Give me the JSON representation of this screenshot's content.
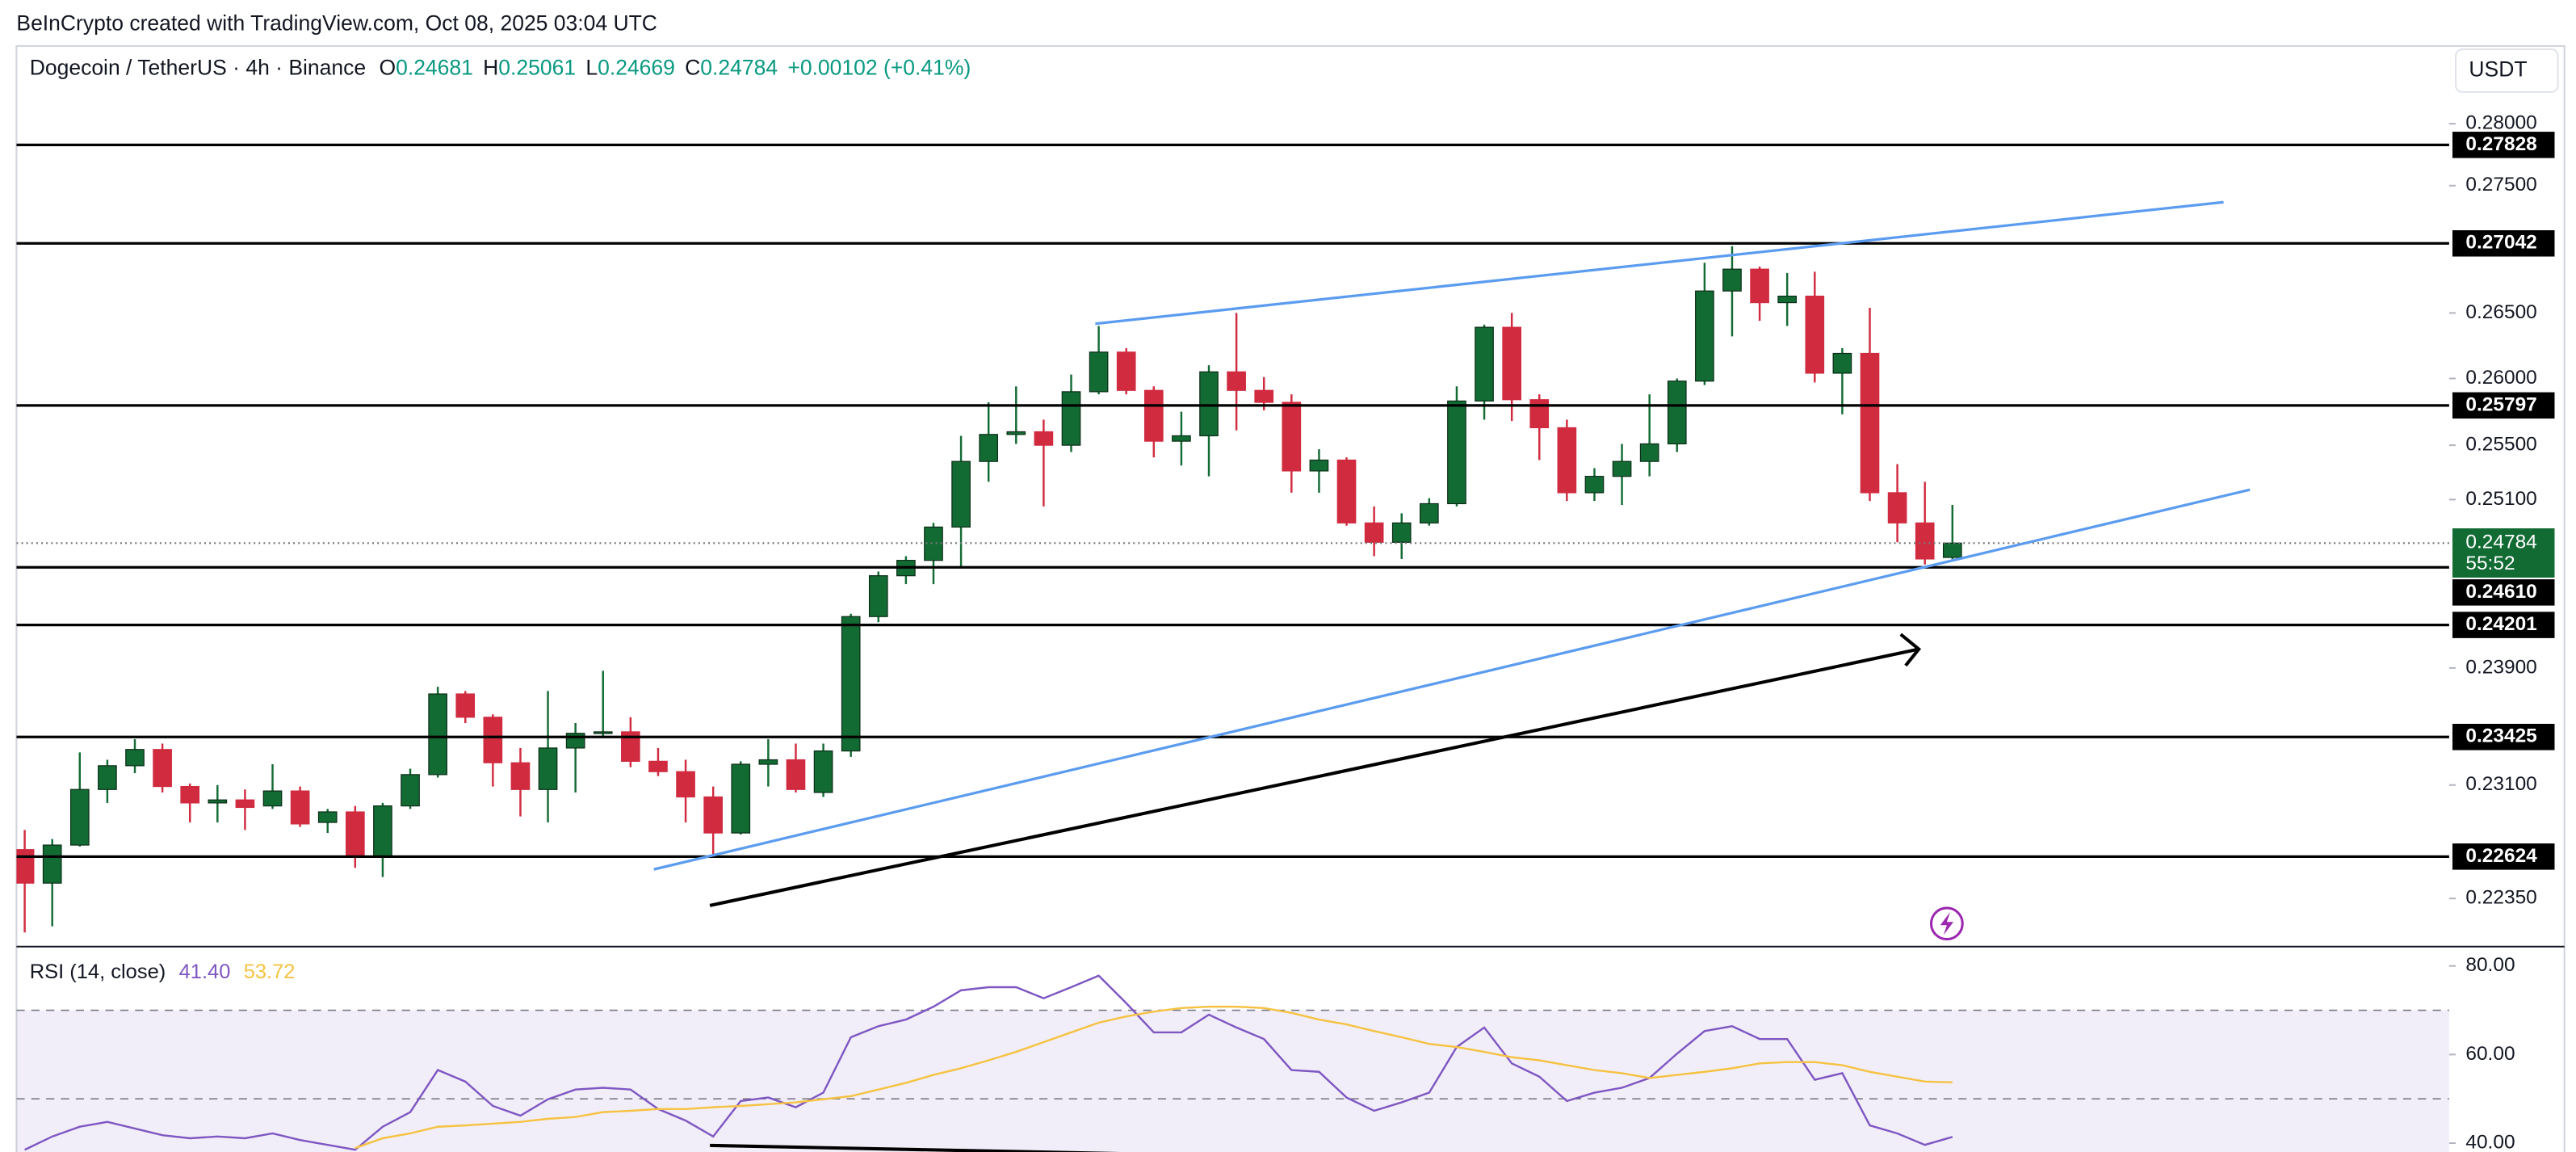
{
  "chart_data": [
    {
      "type": "candlestick",
      "header": "BeInCrypto created with TradingView.com, Oct 08, 2025 03:04 UTC",
      "title": "Dogecoin / TetherUS · 4h · Binance",
      "ohlc_keys": [
        "O",
        "H",
        "L",
        "C"
      ],
      "change": "+0.00102 (+0.41%)",
      "currency": "USDT",
      "countdown": "55:52",
      "up_color": "#136b34",
      "down_color": "#d12b40",
      "log_scale": true,
      "ylim": [
        0.2205,
        0.2864
      ],
      "yticks": [
        {
          "value": 0.28,
          "label": "0.28000"
        },
        {
          "value": 0.275,
          "label": "0.27500"
        },
        {
          "value": 0.265,
          "label": "0.26500"
        },
        {
          "value": 0.26,
          "label": "0.26000"
        },
        {
          "value": 0.255,
          "label": "0.25500"
        },
        {
          "value": 0.251,
          "label": "0.25100"
        },
        {
          "value": 0.239,
          "label": "0.23900"
        },
        {
          "value": 0.231,
          "label": "0.23100"
        },
        {
          "value": 0.2235,
          "label": "0.22350"
        }
      ],
      "levels": [
        0.27828,
        0.27042,
        0.25797,
        {
          "value": 0.2461,
          "label": "0.24610"
        },
        0.24201,
        0.23425,
        0.22624
      ],
      "ohlc": [
        [
          0.2267,
          0.228,
          0.2213,
          0.2245
        ],
        [
          0.2245,
          0.2274,
          0.2217,
          0.227
        ],
        [
          0.227,
          0.2332,
          0.2269,
          0.2307
        ],
        [
          0.2307,
          0.2327,
          0.2298,
          0.2323
        ],
        [
          0.2323,
          0.2341,
          0.2318,
          0.2334
        ],
        [
          0.2334,
          0.2338,
          0.2305,
          0.2309
        ],
        [
          0.2309,
          0.2311,
          0.2285,
          0.2298
        ],
        [
          0.2298,
          0.231,
          0.2285,
          0.23
        ],
        [
          0.23,
          0.2307,
          0.228,
          0.2295
        ],
        [
          0.2296,
          0.2324,
          0.2294,
          0.2306
        ],
        [
          0.2306,
          0.2309,
          0.2282,
          0.2284
        ],
        [
          0.2285,
          0.2294,
          0.2278,
          0.2292
        ],
        [
          0.2292,
          0.2296,
          0.2255,
          0.2262
        ],
        [
          0.2262,
          0.2298,
          0.2249,
          0.2296
        ],
        [
          0.2296,
          0.2321,
          0.2294,
          0.2317
        ],
        [
          0.2317,
          0.2377,
          0.2315,
          0.2372
        ],
        [
          0.2372,
          0.2374,
          0.2352,
          0.2356
        ],
        [
          0.2356,
          0.2358,
          0.2309,
          0.2325
        ],
        [
          0.2325,
          0.2335,
          0.2289,
          0.2307
        ],
        [
          0.2307,
          0.2374,
          0.2285,
          0.2335
        ],
        [
          0.2335,
          0.2352,
          0.2305,
          0.2345
        ],
        [
          0.2345,
          0.2388,
          0.2343,
          0.2346
        ],
        [
          0.2346,
          0.2356,
          0.2322,
          0.2326
        ],
        [
          0.2326,
          0.2335,
          0.2316,
          0.2319
        ],
        [
          0.2319,
          0.2327,
          0.2285,
          0.2302
        ],
        [
          0.2302,
          0.2309,
          0.2264,
          0.2278
        ],
        [
          0.2278,
          0.2326,
          0.2277,
          0.2324
        ],
        [
          0.2324,
          0.2341,
          0.2309,
          0.2327
        ],
        [
          0.2327,
          0.2338,
          0.2305,
          0.2307
        ],
        [
          0.2305,
          0.2338,
          0.2302,
          0.2333
        ],
        [
          0.2333,
          0.2428,
          0.2329,
          0.2426
        ],
        [
          0.2426,
          0.2458,
          0.2422,
          0.2455
        ],
        [
          0.2455,
          0.2469,
          0.2449,
          0.2466
        ],
        [
          0.2466,
          0.2493,
          0.2449,
          0.249
        ],
        [
          0.249,
          0.2557,
          0.2461,
          0.2538
        ],
        [
          0.2538,
          0.2582,
          0.2523,
          0.2558
        ],
        [
          0.2558,
          0.2594,
          0.2551,
          0.256
        ],
        [
          0.256,
          0.2569,
          0.2505,
          0.255
        ],
        [
          0.255,
          0.2603,
          0.2545,
          0.259
        ],
        [
          0.259,
          0.264,
          0.2588,
          0.262
        ],
        [
          0.262,
          0.2623,
          0.2588,
          0.2591
        ],
        [
          0.2591,
          0.2594,
          0.2541,
          0.2553
        ],
        [
          0.2553,
          0.2575,
          0.2535,
          0.2557
        ],
        [
          0.2557,
          0.261,
          0.2527,
          0.2605
        ],
        [
          0.2605,
          0.265,
          0.2561,
          0.2591
        ],
        [
          0.2591,
          0.2601,
          0.2576,
          0.2582
        ],
        [
          0.2582,
          0.2588,
          0.2515,
          0.2531
        ],
        [
          0.2531,
          0.2547,
          0.2515,
          0.2539
        ],
        [
          0.2539,
          0.2541,
          0.2491,
          0.2493
        ],
        [
          0.2493,
          0.2505,
          0.2469,
          0.2479
        ],
        [
          0.2479,
          0.25,
          0.2467,
          0.2493
        ],
        [
          0.2493,
          0.2511,
          0.2491,
          0.2507
        ],
        [
          0.2507,
          0.2594,
          0.2505,
          0.2583
        ],
        [
          0.2583,
          0.2641,
          0.2569,
          0.2639
        ],
        [
          0.2639,
          0.265,
          0.2568,
          0.2584
        ],
        [
          0.2584,
          0.2588,
          0.2539,
          0.2563
        ],
        [
          0.2563,
          0.2569,
          0.2509,
          0.2515
        ],
        [
          0.2515,
          0.2533,
          0.2509,
          0.2527
        ],
        [
          0.2527,
          0.2551,
          0.2506,
          0.2538
        ],
        [
          0.2538,
          0.2588,
          0.2527,
          0.2551
        ],
        [
          0.2551,
          0.26,
          0.2545,
          0.2598
        ],
        [
          0.2598,
          0.2689,
          0.2595,
          0.2667
        ],
        [
          0.2667,
          0.2702,
          0.2632,
          0.2684
        ],
        [
          0.2684,
          0.2686,
          0.2644,
          0.2658
        ],
        [
          0.2658,
          0.2681,
          0.264,
          0.2663
        ],
        [
          0.2663,
          0.2682,
          0.2597,
          0.2604
        ],
        [
          0.2604,
          0.2623,
          0.2573,
          0.2619
        ],
        [
          0.2619,
          0.2654,
          0.2509,
          0.2515
        ],
        [
          0.2515,
          0.2536,
          0.2479,
          0.2493
        ],
        [
          0.2493,
          0.2523,
          0.2463,
          0.2467
        ],
        [
          0.24681,
          0.25061,
          0.24669,
          0.24784
        ]
      ]
    },
    {
      "type": "line",
      "title": "RSI (14, close)",
      "ylim": [
        38,
        84
      ],
      "yticks": [
        {
          "value": 80,
          "label": "80.00"
        },
        {
          "value": 60,
          "label": "60.00"
        },
        {
          "value": 40,
          "label": "40.00"
        }
      ],
      "band": [
        30,
        70
      ],
      "midline": 50,
      "current_values": [
        {
          "value": 41.4,
          "label": "41.40"
        },
        {
          "value": 53.72,
          "label": "53.72"
        }
      ],
      "series": [
        {
          "color": "#7e57c2",
          "values": [
            38.5,
            41.5,
            43.7,
            44.8,
            43.3,
            41.8,
            41.1,
            41.5,
            41.1,
            42.2,
            40.7,
            39.6,
            38.5,
            43.7,
            47.0,
            56.5,
            53.9,
            48.4,
            46.2,
            49.9,
            52.1,
            52.5,
            52.1,
            47.7,
            45.1,
            41.5,
            49.5,
            50.3,
            48.1,
            51.4,
            63.9,
            66.4,
            67.9,
            70.8,
            74.5,
            75.2,
            75.2,
            72.7,
            75.2,
            77.8,
            71.6,
            65.0,
            65.0,
            69.0,
            66.1,
            63.5,
            56.5,
            56.1,
            50.3,
            47.3,
            49.2,
            51.4,
            61.7,
            66.1,
            58.0,
            55.0,
            49.5,
            51.4,
            52.5,
            54.7,
            60.2,
            65.3,
            66.4,
            63.5,
            63.5,
            54.3,
            55.8,
            44.0,
            42.2,
            39.6,
            41.4
          ]
        },
        {
          "color": "#f5c242",
          "values": [
            null,
            null,
            null,
            null,
            null,
            null,
            null,
            null,
            null,
            null,
            null,
            null,
            38.9,
            41.1,
            42.2,
            43.7,
            44.0,
            44.4,
            44.8,
            45.5,
            45.9,
            47.0,
            47.3,
            47.7,
            47.7,
            48.1,
            48.4,
            48.8,
            49.2,
            49.9,
            50.6,
            52.1,
            53.6,
            55.4,
            56.9,
            58.7,
            60.6,
            62.8,
            65.0,
            67.2,
            68.6,
            69.7,
            70.5,
            70.8,
            70.8,
            70.5,
            69.4,
            67.9,
            66.8,
            65.3,
            63.9,
            62.4,
            61.7,
            60.6,
            59.4,
            58.7,
            57.6,
            56.5,
            55.8,
            54.7,
            55.4,
            56.1,
            56.9,
            58.0,
            58.3,
            58.3,
            57.6,
            56.1,
            55.0,
            53.9,
            53.72
          ]
        }
      ]
    }
  ]
}
